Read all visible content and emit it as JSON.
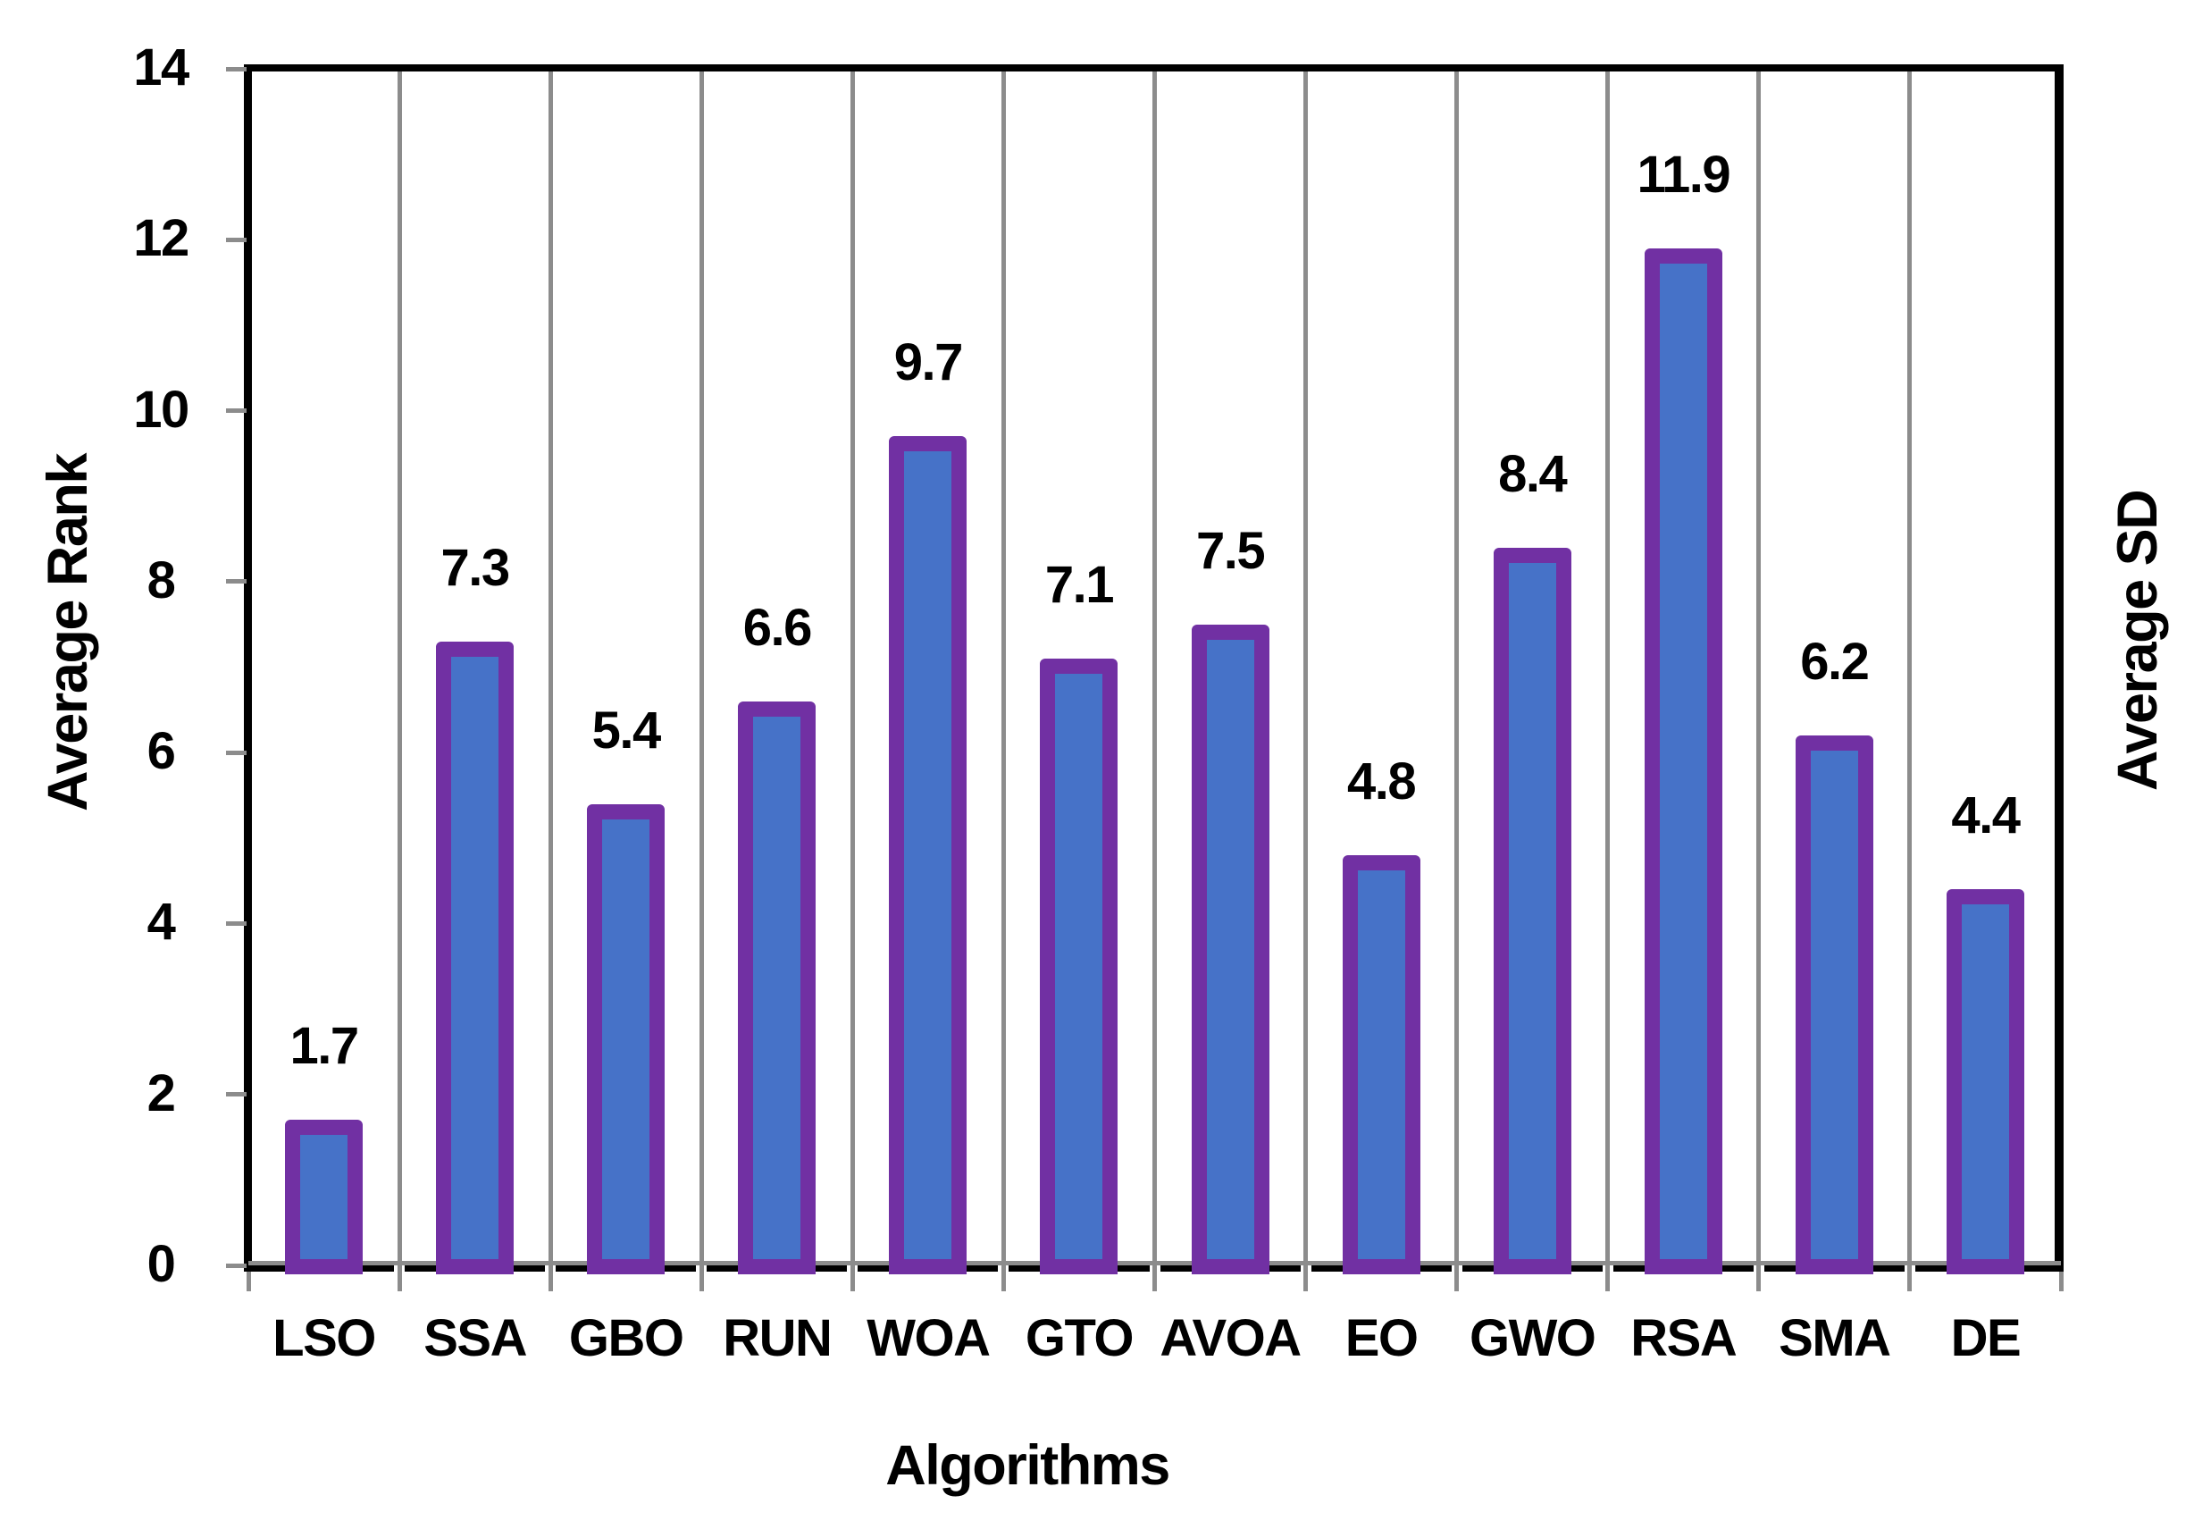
{
  "chart_data": {
    "type": "bar",
    "title": "",
    "categories": [
      "LSO",
      "SSA",
      "GBO",
      "RUN",
      "WOA",
      "GTO",
      "AVOA",
      "EO",
      "GWO",
      "RSA",
      "SMA",
      "DE"
    ],
    "values": [
      1.7,
      7.3,
      5.4,
      6.6,
      9.7,
      7.1,
      7.5,
      4.8,
      8.4,
      11.9,
      6.2,
      4.4
    ],
    "value_labels": [
      "1.7",
      "7.3",
      "5.4",
      "6.6",
      "9.7",
      "7.1",
      "7.5",
      "4.8",
      "8.4",
      "11.9",
      "6.2",
      "4.4"
    ],
    "xlabel": "Algorithms",
    "ylabel_left": "Average Rank",
    "ylabel_right": "Average SD",
    "ylim": [
      0,
      14
    ],
    "yticks": [
      0,
      2,
      4,
      6,
      8,
      10,
      12,
      14
    ],
    "grid": "vertical-category-separators",
    "legend": "none",
    "colors": {
      "bar_fill": "#4672C8",
      "bar_border": "#7130A3",
      "gridline": "#8C8C8C",
      "axis": "#000000",
      "background": "#FFFFFF"
    }
  }
}
